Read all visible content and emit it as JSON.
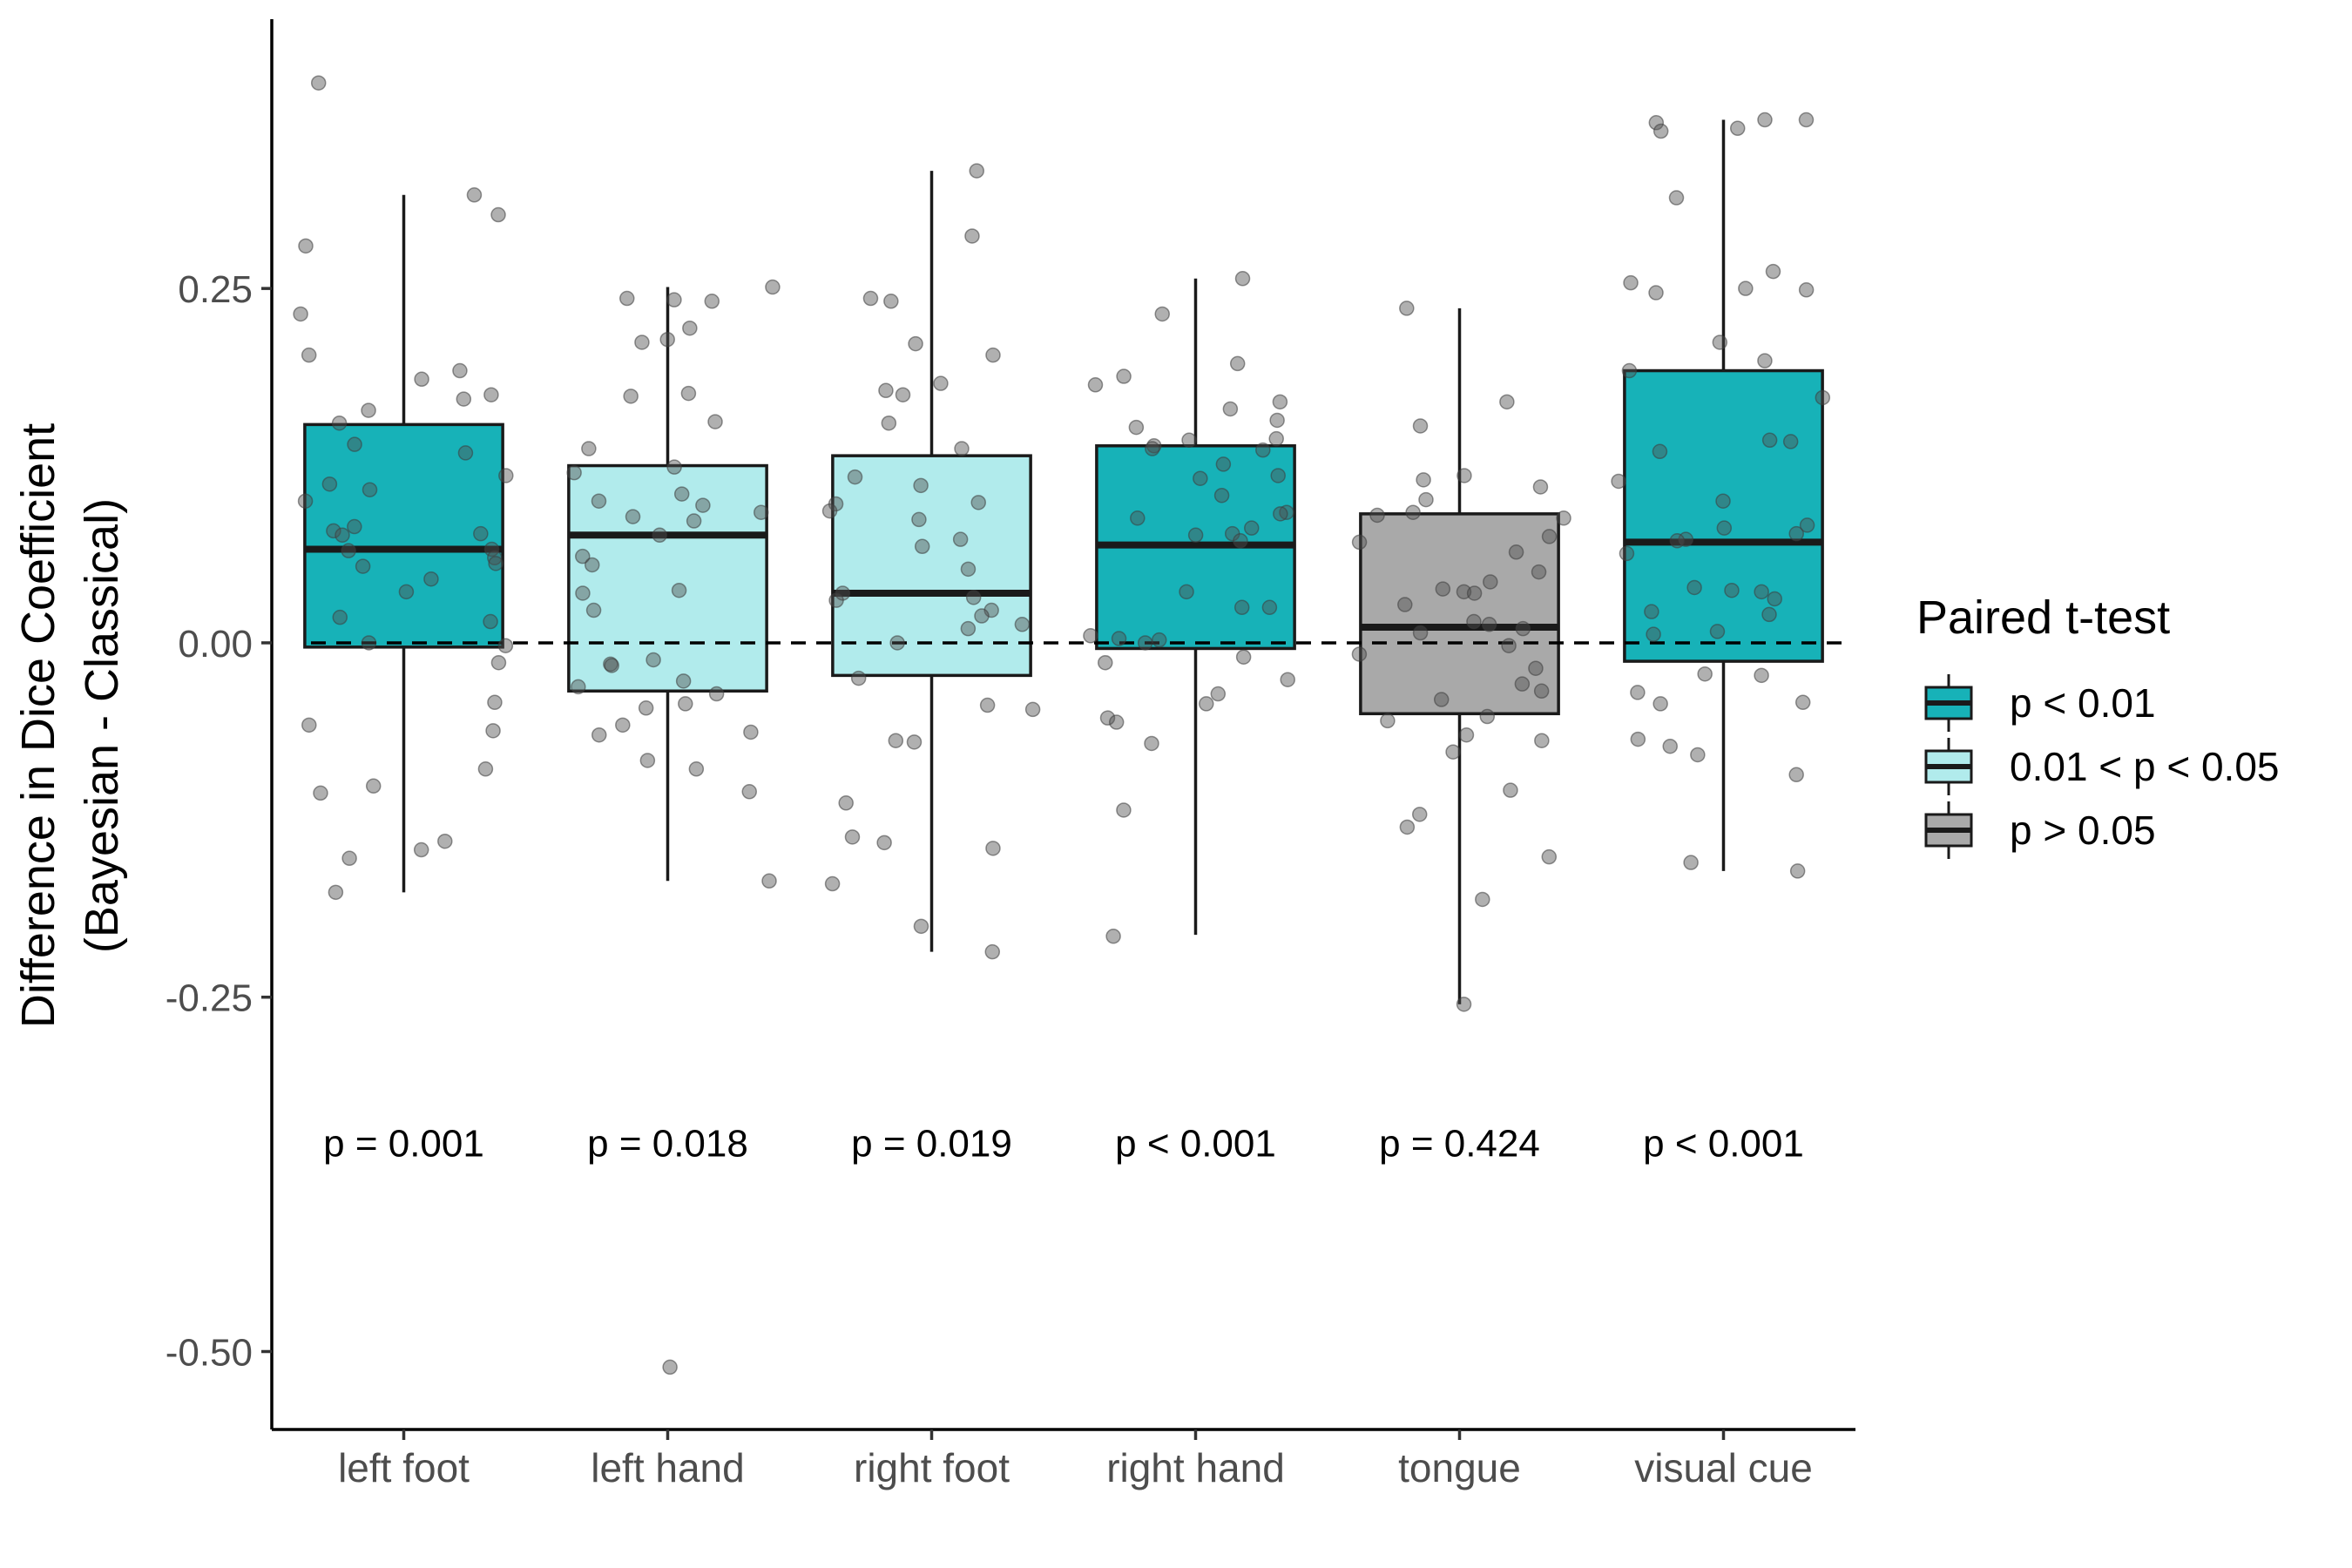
{
  "chart_data": {
    "type": "box",
    "ylabel_line1": "Difference in Dice Coefficient",
    "ylabel_line2": "(Bayesian - Classical)",
    "xlabel": "",
    "ylim": [
      -0.555,
      0.44
    ],
    "yticks": [
      0.25,
      0.0,
      -0.25,
      -0.5
    ],
    "ytick_labels": [
      "0.25",
      "0.00",
      "-0.25",
      "-0.50"
    ],
    "reference_line": 0.0,
    "grid": false,
    "legend": {
      "title": "Paired t-test",
      "placement": "right",
      "items": [
        {
          "label": "p < 0.01",
          "color": "#17b2b8"
        },
        {
          "label": "0.01 < p < 0.05",
          "color": "#b1ebec"
        },
        {
          "label": "p > 0.05",
          "color": "#a9a9a9"
        }
      ]
    },
    "categories": [
      {
        "name": "left foot",
        "group": 0,
        "p_label": "p = 0.001",
        "stats": {
          "whisker_low": -0.176,
          "q1": -0.003,
          "median": 0.066,
          "q3": 0.154,
          "whisker_high": 0.316
        },
        "points": [
          0.395,
          0.316,
          0.302,
          0.28,
          0.232,
          0.203,
          0.192,
          0.186,
          0.175,
          0.172,
          0.164,
          0.155,
          0.14,
          0.134,
          0.118,
          0.112,
          0.108,
          0.1,
          0.082,
          0.079,
          0.077,
          0.076,
          0.066,
          0.065,
          0.06,
          0.056,
          0.054,
          0.045,
          0.036,
          0.018,
          0.015,
          0.0,
          -0.002,
          -0.014,
          -0.042,
          -0.058,
          -0.062,
          -0.089,
          -0.101,
          -0.106,
          -0.14,
          -0.146,
          -0.152,
          -0.176
        ]
      },
      {
        "name": "left hand",
        "group": 1,
        "p_label": "p = 0.018",
        "stats": {
          "whisker_low": -0.168,
          "q1": -0.034,
          "median": 0.076,
          "q3": 0.125,
          "whisker_high": 0.251
        },
        "points": [
          0.251,
          0.243,
          0.242,
          0.241,
          0.222,
          0.214,
          0.212,
          0.176,
          0.174,
          0.156,
          0.137,
          0.124,
          0.12,
          0.105,
          0.1,
          0.097,
          0.092,
          0.089,
          0.086,
          0.076,
          0.061,
          0.055,
          0.037,
          0.035,
          0.023,
          -0.012,
          -0.015,
          -0.016,
          -0.027,
          -0.031,
          -0.036,
          -0.043,
          -0.046,
          -0.058,
          -0.063,
          -0.065,
          -0.083,
          -0.089,
          -0.105,
          -0.168,
          -0.511
        ]
      },
      {
        "name": "right foot",
        "group": 1,
        "p_label": "p = 0.019",
        "stats": {
          "whisker_low": -0.218,
          "q1": -0.023,
          "median": 0.035,
          "q3": 0.132,
          "whisker_high": 0.333
        },
        "points": [
          0.333,
          0.287,
          0.243,
          0.241,
          0.211,
          0.203,
          0.183,
          0.178,
          0.175,
          0.155,
          0.137,
          0.117,
          0.111,
          0.099,
          0.098,
          0.093,
          0.087,
          0.073,
          0.068,
          0.052,
          0.035,
          0.032,
          0.03,
          0.023,
          0.019,
          0.013,
          0.01,
          0.0,
          -0.025,
          -0.044,
          -0.047,
          -0.069,
          -0.07,
          -0.113,
          -0.137,
          -0.141,
          -0.145,
          -0.17,
          -0.2,
          -0.218
        ]
      },
      {
        "name": "right hand",
        "group": 0,
        "p_label": "p < 0.001",
        "stats": {
          "whisker_low": -0.206,
          "q1": -0.004,
          "median": 0.069,
          "q3": 0.139,
          "whisker_high": 0.257
        },
        "points": [
          0.257,
          0.232,
          0.197,
          0.188,
          0.182,
          0.17,
          0.165,
          0.157,
          0.152,
          0.144,
          0.143,
          0.139,
          0.137,
          0.136,
          0.126,
          0.118,
          0.116,
          0.104,
          0.092,
          0.091,
          0.088,
          0.081,
          0.077,
          0.076,
          0.072,
          0.036,
          0.025,
          0.025,
          0.005,
          0.003,
          0.002,
          0.0,
          -0.01,
          -0.014,
          -0.026,
          -0.036,
          -0.043,
          -0.053,
          -0.056,
          -0.071,
          -0.118,
          -0.207
        ]
      },
      {
        "name": "tongue",
        "group": 2,
        "p_label": "p = 0.424",
        "stats": {
          "whisker_low": -0.255,
          "q1": -0.05,
          "median": 0.011,
          "q3": 0.091,
          "whisker_high": 0.236
        },
        "points": [
          0.236,
          0.17,
          0.153,
          0.118,
          0.115,
          0.11,
          0.101,
          0.092,
          0.09,
          0.088,
          0.075,
          0.071,
          0.064,
          0.05,
          0.043,
          0.038,
          0.036,
          0.035,
          0.027,
          0.015,
          0.013,
          0.01,
          0.007,
          -0.002,
          -0.008,
          -0.018,
          -0.029,
          -0.034,
          -0.04,
          -0.052,
          -0.055,
          -0.065,
          -0.069,
          -0.077,
          -0.104,
          -0.121,
          -0.13,
          -0.151,
          -0.181,
          -0.255
        ]
      },
      {
        "name": "visual cue",
        "group": 0,
        "p_label": "p < 0.001",
        "stats": {
          "whisker_low": -0.161,
          "q1": -0.013,
          "median": 0.071,
          "q3": 0.192,
          "whisker_high": 0.369
        },
        "points": [
          0.369,
          0.369,
          0.367,
          0.363,
          0.361,
          0.314,
          0.262,
          0.254,
          0.25,
          0.249,
          0.247,
          0.212,
          0.199,
          0.192,
          0.173,
          0.143,
          0.142,
          0.135,
          0.114,
          0.1,
          0.083,
          0.081,
          0.077,
          0.073,
          0.072,
          0.063,
          0.039,
          0.037,
          0.036,
          0.031,
          0.022,
          0.02,
          0.008,
          0.006,
          -0.022,
          -0.023,
          -0.035,
          -0.042,
          -0.043,
          -0.068,
          -0.073,
          -0.079,
          -0.093,
          -0.155,
          -0.161
        ]
      }
    ]
  }
}
